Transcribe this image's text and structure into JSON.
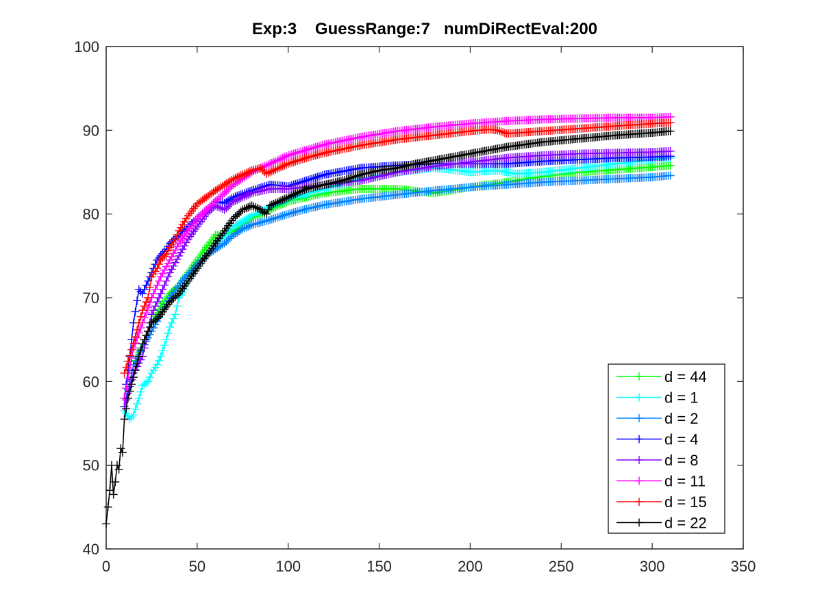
{
  "chart_data": {
    "type": "line",
    "title": "Exp:3    GuessRange:7   numDiRectEval:200",
    "xlabel": "",
    "ylabel": "",
    "xlim": [
      0,
      350
    ],
    "ylim": [
      40,
      100
    ],
    "xticks": [
      0,
      50,
      100,
      150,
      200,
      250,
      300,
      350
    ],
    "yticks": [
      40,
      50,
      60,
      70,
      80,
      90,
      100
    ],
    "grid": false,
    "legend_position": "bottom-right",
    "marker": "+",
    "series": [
      {
        "name": "d = 44",
        "color": "#00ff00",
        "x": [
          10,
          15,
          20,
          25,
          30,
          35,
          40,
          45,
          50,
          55,
          60,
          65,
          70,
          80,
          90,
          100,
          120,
          140,
          160,
          180,
          200,
          220,
          240,
          260,
          280,
          300,
          310
        ],
        "y": [
          57,
          62,
          64.5,
          67,
          69,
          70.5,
          71.5,
          73,
          74.5,
          76,
          77.5,
          77.5,
          78,
          79.5,
          80.5,
          81.5,
          82.5,
          83,
          83,
          82.5,
          83.2,
          83.8,
          84.5,
          85,
          85.3,
          85.6,
          85.8
        ]
      },
      {
        "name": "d = 1",
        "color": "#00ffff",
        "x": [
          10,
          13,
          15,
          18,
          20,
          23,
          25,
          28,
          30,
          33,
          35,
          38,
          40,
          43,
          45,
          50,
          55,
          60,
          65,
          70,
          80,
          90,
          100,
          120,
          140,
          160,
          180,
          190,
          200,
          215,
          225,
          240,
          260,
          280,
          300,
          310
        ],
        "y": [
          56.5,
          55.5,
          56,
          58,
          59.5,
          60,
          61,
          62,
          63,
          65,
          66.5,
          68,
          70,
          71,
          72,
          73.5,
          75,
          76.5,
          77.5,
          78.5,
          79.8,
          80.8,
          81.8,
          83,
          84.2,
          85,
          85.5,
          85.3,
          85,
          85.2,
          84.8,
          85,
          85.5,
          86,
          86.5,
          86.7
        ]
      },
      {
        "name": "d = 2",
        "color": "#0080ff",
        "x": [
          10,
          15,
          20,
          25,
          30,
          35,
          40,
          45,
          50,
          55,
          60,
          65,
          70,
          75,
          80,
          90,
          100,
          110,
          120,
          140,
          160,
          180,
          200,
          220,
          240,
          260,
          280,
          300,
          310
        ],
        "y": [
          57,
          62,
          64,
          66,
          68,
          70,
          71.5,
          72.8,
          74,
          75,
          75.8,
          76.5,
          77.5,
          78.2,
          78.7,
          79.3,
          80,
          80.6,
          81.1,
          81.8,
          82.3,
          82.8,
          83.2,
          83.5,
          83.8,
          84,
          84.2,
          84.4,
          84.6
        ]
      },
      {
        "name": "d = 4",
        "color": "#0000ff",
        "x": [
          10,
          13,
          15,
          18,
          20,
          23,
          25,
          28,
          30,
          33,
          35,
          40,
          45,
          50,
          55,
          60,
          65,
          70,
          80,
          90,
          100,
          110,
          120,
          140,
          160,
          180,
          200,
          220,
          240,
          260,
          280,
          300,
          310
        ],
        "y": [
          58,
          63,
          67,
          71,
          70.5,
          72,
          73,
          74.5,
          75,
          75.8,
          76.5,
          77.5,
          78.5,
          79.5,
          80.5,
          81.5,
          81.3,
          82,
          82.8,
          83.5,
          83.3,
          84,
          84.7,
          85.5,
          85.8,
          86,
          86,
          86,
          86.3,
          86.5,
          86.7,
          86.8,
          86.9
        ]
      },
      {
        "name": "d = 8",
        "color": "#8000ff",
        "x": [
          10,
          15,
          20,
          25,
          30,
          35,
          40,
          45,
          50,
          55,
          60,
          65,
          70,
          80,
          90,
          100,
          120,
          140,
          160,
          180,
          200,
          220,
          240,
          260,
          280,
          300,
          310
        ],
        "y": [
          57,
          61,
          63,
          68,
          70.5,
          73,
          75,
          77,
          78.5,
          80,
          81,
          80.5,
          81.5,
          82.5,
          83,
          83,
          83.5,
          84,
          85,
          85.7,
          86.2,
          86.7,
          87,
          87.2,
          87.3,
          87.4,
          87.5
        ]
      },
      {
        "name": "d = 11",
        "color": "#ff00ff",
        "x": [
          10,
          15,
          20,
          25,
          30,
          35,
          40,
          45,
          50,
          55,
          60,
          65,
          70,
          80,
          90,
          100,
          120,
          140,
          160,
          180,
          200,
          220,
          240,
          260,
          280,
          300,
          310
        ],
        "y": [
          58,
          64,
          67,
          70,
          72.5,
          74.5,
          76.5,
          78,
          79.5,
          80.5,
          81.5,
          82.5,
          83.5,
          85,
          86,
          87,
          88.3,
          89.2,
          89.9,
          90.4,
          90.8,
          91.1,
          91.3,
          91.4,
          91.5,
          91.5,
          91.6
        ]
      },
      {
        "name": "d = 15",
        "color": "#ff0000",
        "x": [
          10,
          15,
          18,
          20,
          23,
          25,
          28,
          30,
          33,
          35,
          38,
          40,
          45,
          50,
          55,
          60,
          65,
          70,
          75,
          80,
          85,
          88,
          90,
          100,
          110,
          120,
          140,
          160,
          180,
          200,
          210,
          215,
          220,
          240,
          260,
          280,
          300,
          310
        ],
        "y": [
          61,
          64.5,
          67,
          68.5,
          70,
          72.5,
          73.5,
          74.5,
          75.2,
          76,
          77,
          78,
          79.8,
          81.2,
          82,
          82.8,
          83.5,
          84.2,
          84.7,
          85.2,
          85.5,
          84.8,
          85,
          86,
          86.7,
          87.3,
          88.2,
          88.9,
          89.4,
          89.9,
          90.1,
          90,
          89.6,
          89.9,
          90.2,
          90.5,
          90.8,
          90.9
        ]
      },
      {
        "name": "d = 22",
        "color": "#000000",
        "x": [
          0,
          2,
          3,
          4,
          5,
          6,
          7,
          8,
          9,
          10,
          12,
          15,
          18,
          20,
          23,
          25,
          28,
          30,
          35,
          40,
          45,
          50,
          55,
          60,
          65,
          70,
          75,
          80,
          85,
          88,
          90,
          95,
          100,
          110,
          120,
          130,
          140,
          150,
          160,
          170,
          180,
          190,
          200,
          220,
          240,
          260,
          280,
          300,
          310
        ],
        "y": [
          43,
          47,
          50,
          46.5,
          48,
          50,
          49.5,
          52,
          51.5,
          55.5,
          58,
          60.5,
          63,
          64.5,
          66,
          67,
          67.5,
          68,
          69.5,
          70.5,
          72,
          73.5,
          75,
          76.5,
          78,
          79.5,
          80.5,
          81,
          80.5,
          80,
          81,
          81.5,
          82,
          83,
          83.5,
          84,
          84.7,
          85.2,
          85.5,
          86,
          86.4,
          86.8,
          87.2,
          88,
          88.6,
          89,
          89.4,
          89.7,
          89.9
        ]
      }
    ]
  }
}
